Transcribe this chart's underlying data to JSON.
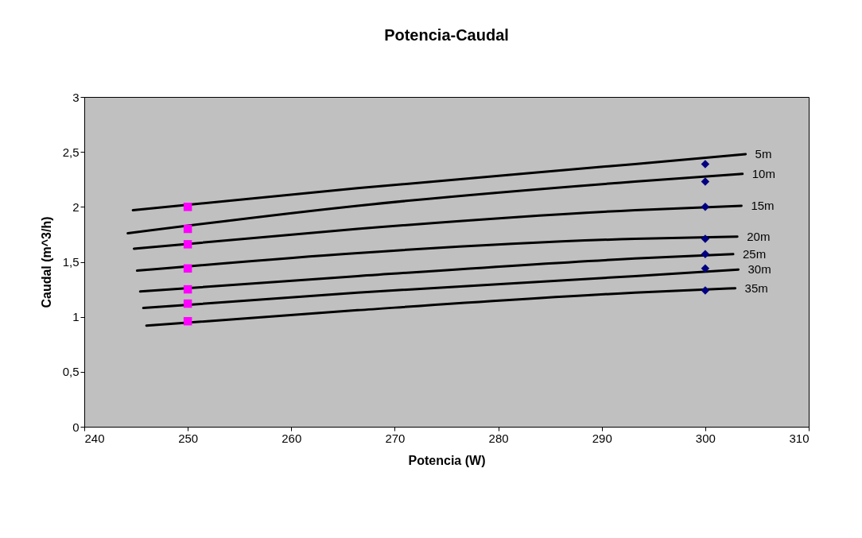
{
  "chart_data": {
    "type": "line",
    "title": "Potencia-Caudal",
    "xlabel": "Potencia (W)",
    "ylabel": "Caudal (m^3/h)",
    "xlim": [
      240,
      310
    ],
    "xticks": [
      240,
      250,
      260,
      270,
      280,
      290,
      300,
      310
    ],
    "ylim": [
      0,
      3
    ],
    "yticks": [
      0,
      {
        "value": 0.5,
        "label": "0,5"
      },
      1,
      {
        "value": 1.5,
        "label": "1,5"
      },
      2,
      {
        "value": 2.5,
        "label": "2,5"
      },
      3
    ],
    "grid": false,
    "marker": "none",
    "line_style": "solid",
    "series": [
      {
        "name": "5m",
        "color": "#000000",
        "x": [
          244.7,
          266.4,
          293.2,
          303.9
        ],
        "values": [
          1.97,
          2.17,
          2.39,
          2.48
        ]
      },
      {
        "name": "10m",
        "color": "#000000",
        "x": [
          244.2,
          266.4,
          293.2,
          303.6
        ],
        "values": [
          1.76,
          2.01,
          2.23,
          2.3
        ]
      },
      {
        "name": "15m",
        "color": "#000000",
        "x": [
          244.8,
          266.4,
          293.2,
          303.5
        ],
        "values": [
          1.62,
          1.8,
          1.97,
          2.01
        ]
      },
      {
        "name": "20m",
        "color": "#000000",
        "x": [
          245.1,
          266.4,
          293.2,
          303.1
        ],
        "values": [
          1.42,
          1.58,
          1.71,
          1.73
        ]
      },
      {
        "name": "25m",
        "color": "#000000",
        "x": [
          245.4,
          266.4,
          293.2,
          302.7
        ],
        "values": [
          1.23,
          1.37,
          1.53,
          1.57
        ]
      },
      {
        "name": "30m",
        "color": "#000000",
        "x": [
          245.7,
          266.4,
          293.2,
          303.2
        ],
        "values": [
          1.08,
          1.22,
          1.37,
          1.43
        ]
      },
      {
        "name": "35m",
        "color": "#000000",
        "x": [
          246.0,
          266.4,
          293.2,
          302.9
        ],
        "values": [
          0.92,
          1.06,
          1.22,
          1.26
        ]
      },
      {
        "type": "scatter",
        "marker": "square",
        "color": "#ff00ff",
        "x": [
          250,
          250,
          250,
          250,
          250,
          250,
          250
        ],
        "values": [
          2.0,
          1.8,
          1.66,
          1.44,
          1.25,
          1.12,
          0.96
        ]
      },
      {
        "type": "scatter",
        "marker": "diamond",
        "color": "#000080",
        "x": [
          300,
          300,
          300,
          300,
          300,
          300,
          300
        ],
        "values": [
          2.39,
          2.23,
          2.0,
          1.71,
          1.57,
          1.44,
          1.24
        ]
      }
    ]
  }
}
